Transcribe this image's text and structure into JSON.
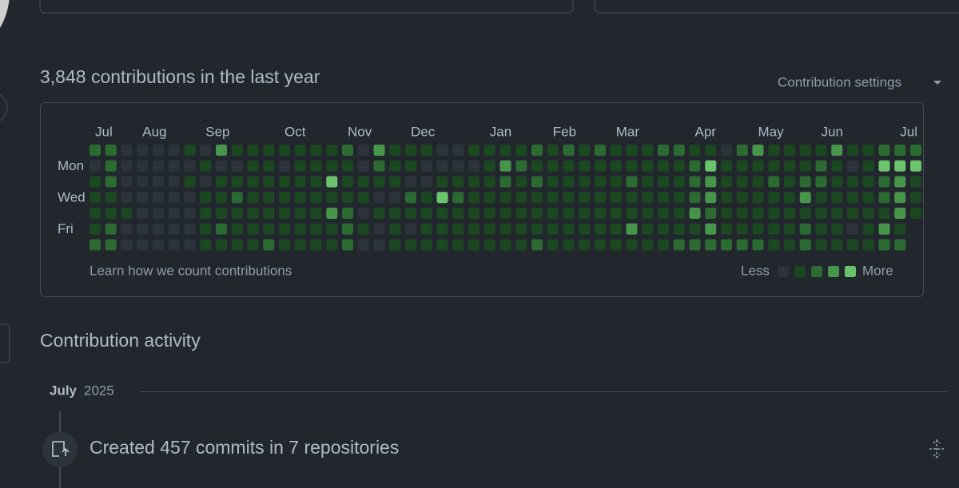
{
  "header": {
    "title": "3,848 contributions in the last year",
    "settings": "Contribution settings"
  },
  "graph": {
    "months": [
      {
        "label": "Jul",
        "week": 0
      },
      {
        "label": "Aug",
        "week": 3
      },
      {
        "label": "Sep",
        "week": 7
      },
      {
        "label": "Oct",
        "week": 12
      },
      {
        "label": "Nov",
        "week": 16
      },
      {
        "label": "Dec",
        "week": 20
      },
      {
        "label": "Jan",
        "week": 25
      },
      {
        "label": "Feb",
        "week": 29
      },
      {
        "label": "Mar",
        "week": 33
      },
      {
        "label": "Apr",
        "week": 38
      },
      {
        "label": "May",
        "week": 42
      },
      {
        "label": "Jun",
        "week": 46
      },
      {
        "label": "Jul",
        "week": 51
      }
    ],
    "level_colors": [
      "#2d333b",
      "#1b4721",
      "#2b6a30",
      "#46954a",
      "#6bc46d"
    ],
    "days": [
      {
        "label": null,
        "levels": [
          2,
          2,
          0,
          0,
          0,
          0,
          1,
          0,
          3,
          1,
          1,
          1,
          1,
          1,
          1,
          1,
          2,
          0,
          3,
          1,
          1,
          1,
          0,
          0,
          1,
          1,
          1,
          1,
          2,
          1,
          2,
          1,
          2,
          1,
          1,
          1,
          2,
          2,
          1,
          1,
          0,
          2,
          3,
          1,
          1,
          1,
          1,
          3,
          1,
          1,
          2,
          2,
          2
        ]
      },
      {
        "label": "Mon",
        "levels": [
          0,
          2,
          0,
          0,
          0,
          0,
          0,
          1,
          0,
          0,
          1,
          1,
          0,
          1,
          1,
          1,
          1,
          0,
          2,
          1,
          1,
          0,
          0,
          0,
          0,
          1,
          3,
          2,
          1,
          1,
          1,
          1,
          1,
          1,
          1,
          1,
          1,
          1,
          2,
          4,
          1,
          1,
          1,
          1,
          1,
          1,
          2,
          1,
          0,
          1,
          4,
          4,
          4
        ]
      },
      {
        "label": null,
        "levels": [
          1,
          2,
          0,
          0,
          0,
          0,
          1,
          0,
          1,
          1,
          1,
          1,
          1,
          1,
          1,
          4,
          1,
          1,
          1,
          1,
          0,
          0,
          1,
          1,
          1,
          1,
          2,
          1,
          2,
          1,
          1,
          1,
          1,
          1,
          2,
          1,
          1,
          1,
          2,
          3,
          1,
          1,
          1,
          2,
          1,
          2,
          2,
          1,
          1,
          1,
          2,
          3,
          1
        ]
      },
      {
        "label": "Wed",
        "levels": [
          1,
          1,
          0,
          0,
          0,
          0,
          0,
          1,
          1,
          2,
          1,
          1,
          1,
          1,
          1,
          1,
          1,
          1,
          0,
          0,
          2,
          1,
          4,
          2,
          1,
          1,
          1,
          1,
          1,
          1,
          1,
          1,
          1,
          1,
          1,
          1,
          1,
          1,
          2,
          3,
          1,
          1,
          1,
          1,
          1,
          3,
          1,
          1,
          1,
          1,
          2,
          3,
          1
        ]
      },
      {
        "label": null,
        "levels": [
          1,
          1,
          1,
          0,
          0,
          0,
          0,
          1,
          1,
          1,
          1,
          1,
          1,
          1,
          1,
          3,
          2,
          0,
          1,
          1,
          1,
          1,
          1,
          1,
          1,
          1,
          1,
          1,
          1,
          1,
          1,
          1,
          1,
          1,
          1,
          1,
          1,
          1,
          3,
          2,
          1,
          1,
          1,
          1,
          1,
          1,
          1,
          1,
          1,
          1,
          1,
          3,
          1
        ]
      },
      {
        "label": "Fri",
        "levels": [
          1,
          2,
          0,
          0,
          0,
          0,
          0,
          1,
          2,
          1,
          1,
          1,
          1,
          1,
          1,
          1,
          2,
          1,
          0,
          1,
          0,
          1,
          1,
          1,
          1,
          1,
          1,
          1,
          1,
          1,
          1,
          1,
          1,
          1,
          3,
          1,
          1,
          1,
          1,
          3,
          1,
          1,
          1,
          1,
          1,
          2,
          1,
          1,
          0,
          1,
          3,
          1,
          null
        ]
      },
      {
        "label": null,
        "levels": [
          2,
          2,
          0,
          0,
          0,
          0,
          0,
          1,
          1,
          1,
          1,
          2,
          1,
          1,
          1,
          1,
          2,
          0,
          0,
          1,
          1,
          1,
          1,
          1,
          1,
          1,
          1,
          1,
          2,
          1,
          1,
          1,
          1,
          1,
          1,
          1,
          1,
          2,
          2,
          2,
          2,
          2,
          2,
          1,
          1,
          2,
          1,
          1,
          1,
          1,
          2,
          2,
          null
        ]
      }
    ],
    "learn": "Learn how we count contributions",
    "less": "Less",
    "more": "More"
  },
  "activity": {
    "title": "Contribution activity",
    "month": "July",
    "year": "2025",
    "event": "Created 457 commits in 7 repositories"
  }
}
